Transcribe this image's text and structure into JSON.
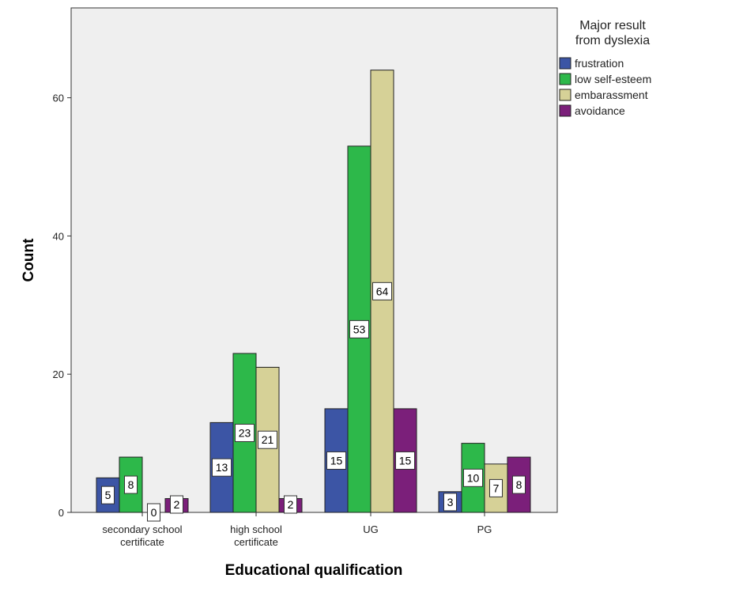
{
  "chart_data": {
    "type": "bar",
    "title": "",
    "xlabel": "Educational qualification",
    "ylabel": "Count",
    "ylim": [
      0,
      73
    ],
    "yticks": [
      0,
      20,
      40,
      60
    ],
    "grid": false,
    "legend_position": "right",
    "legend_title": [
      "Major result",
      "from dyslexia"
    ],
    "categories": [
      [
        "secondary school",
        "certificate"
      ],
      [
        "high school",
        "certificate"
      ],
      [
        "UG"
      ],
      [
        "PG"
      ]
    ],
    "series": [
      {
        "name": "frustration",
        "color": "#3c55a5",
        "values": [
          5,
          13,
          15,
          3
        ]
      },
      {
        "name": "low self-esteem",
        "color": "#2db84a",
        "values": [
          8,
          23,
          53,
          10
        ]
      },
      {
        "name": "embarassment",
        "color": "#d6d197",
        "values": [
          0,
          21,
          64,
          7
        ]
      },
      {
        "name": "avoidance",
        "color": "#7b1f7a",
        "values": [
          2,
          2,
          15,
          8
        ]
      }
    ]
  },
  "colors": {
    "plot_background": "#efefef",
    "axis": "#333333"
  }
}
